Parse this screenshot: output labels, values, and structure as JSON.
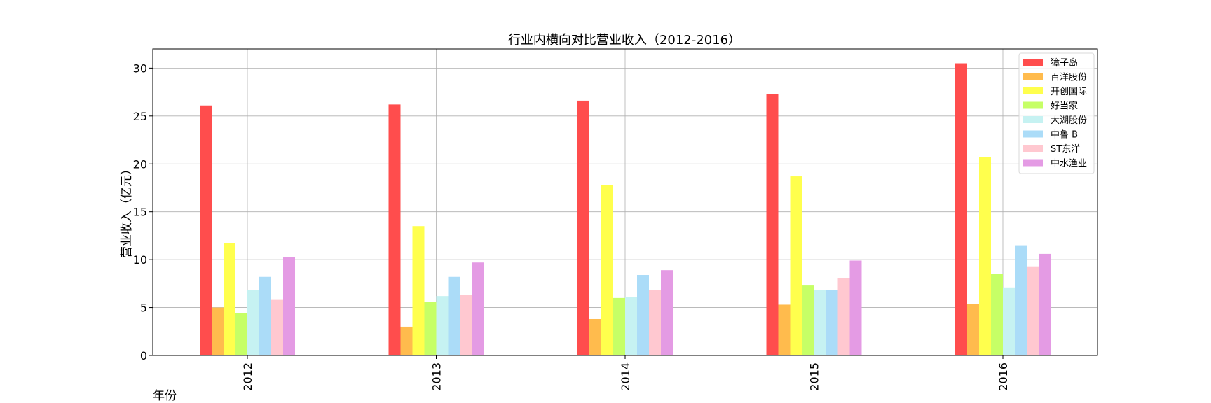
{
  "chart_data": {
    "type": "bar",
    "title": "行业内横向对比营业收入（2012-2016）",
    "xlabel": "年份",
    "ylabel": "营业收入（亿元）",
    "ylim": [
      0,
      32
    ],
    "yticks": [
      0,
      5,
      10,
      15,
      20,
      25,
      30
    ],
    "categories": [
      "2012",
      "2013",
      "2014",
      "2015",
      "2016"
    ],
    "grid": true,
    "legend_position": "top-right",
    "series": [
      {
        "name": "獐子岛",
        "color": "#ff4d4d",
        "values": [
          26.1,
          26.2,
          26.6,
          27.3,
          30.5
        ]
      },
      {
        "name": "百洋股份",
        "color": "#ffbb4d",
        "values": [
          5.0,
          3.0,
          3.8,
          5.3,
          5.4
        ]
      },
      {
        "name": "开创国际",
        "color": "#ffff4d",
        "values": [
          11.7,
          13.5,
          17.8,
          18.7,
          20.7
        ]
      },
      {
        "name": "好当家",
        "color": "#c6ff66",
        "values": [
          4.4,
          5.6,
          6.0,
          7.3,
          8.5
        ]
      },
      {
        "name": "大湖股份",
        "color": "#c6f2f2",
        "values": [
          6.8,
          6.2,
          6.1,
          6.8,
          7.1
        ]
      },
      {
        "name": "中鲁 B",
        "color": "#abdcf8",
        "values": [
          8.2,
          8.2,
          8.4,
          6.8,
          11.5
        ]
      },
      {
        "name": "ST东洋",
        "color": "#ffc8d0",
        "values": [
          5.8,
          6.3,
          6.8,
          8.1,
          9.3
        ]
      },
      {
        "name": "中水渔业",
        "color": "#e49be4",
        "values": [
          10.3,
          9.7,
          8.9,
          9.9,
          10.6
        ]
      }
    ]
  }
}
